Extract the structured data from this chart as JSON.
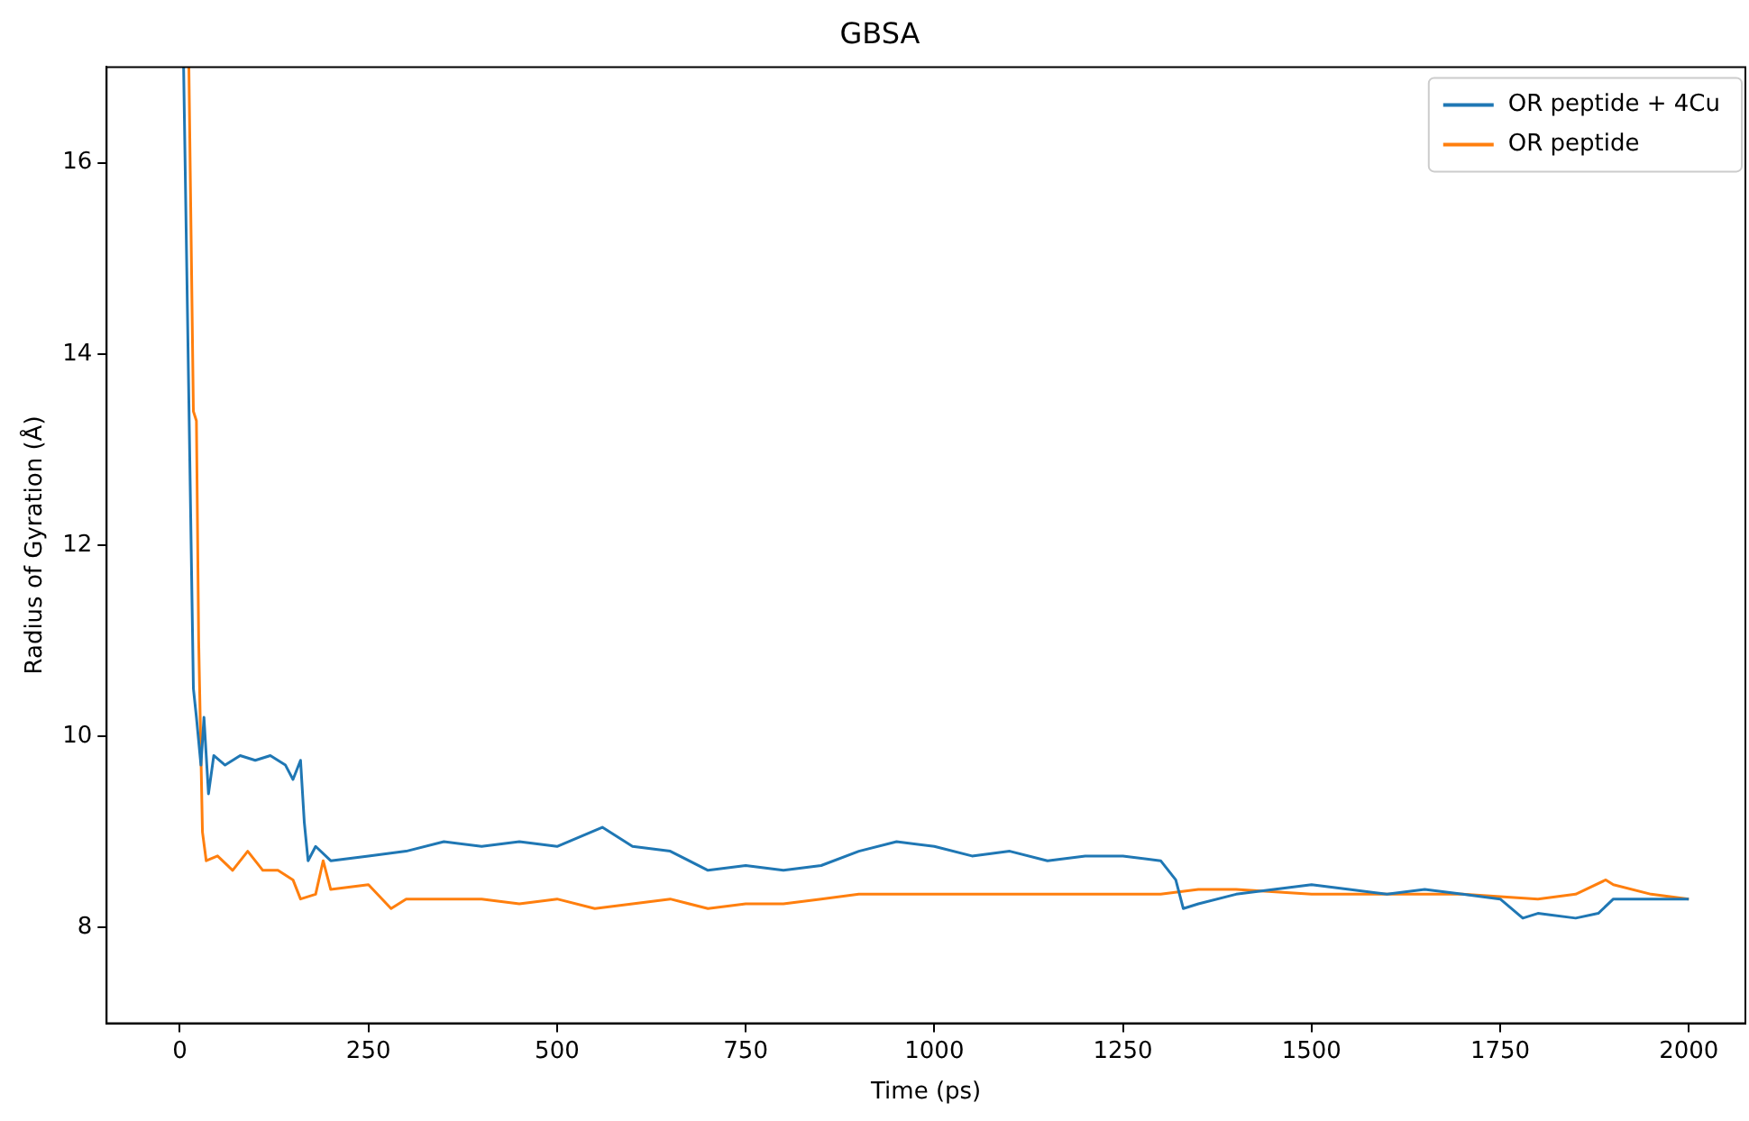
{
  "chart_data": {
    "type": "line",
    "title": "GBSA",
    "xlabel": "Time (ps)",
    "ylabel": "Radius of Gyration (Å)",
    "xlim": [
      -97,
      2075
    ],
    "ylim": [
      7,
      17
    ],
    "xticks": [
      0,
      250,
      500,
      750,
      1000,
      1250,
      1500,
      1750,
      2000
    ],
    "yticks": [
      8,
      10,
      12,
      14,
      16
    ],
    "grid": false,
    "legend": "top right",
    "marker": "none",
    "line_style": "solid",
    "series": [
      {
        "name": "OR peptide + 4Cu",
        "color": "#1f77b4",
        "x": [
          5,
          12,
          18,
          22,
          28,
          32,
          38,
          45,
          60,
          80,
          100,
          120,
          140,
          150,
          160,
          165,
          170,
          180,
          200,
          250,
          300,
          350,
          400,
          450,
          500,
          560,
          600,
          650,
          700,
          750,
          800,
          850,
          900,
          950,
          1000,
          1050,
          1100,
          1150,
          1200,
          1250,
          1300,
          1320,
          1330,
          1350,
          1400,
          1450,
          1500,
          1550,
          1600,
          1650,
          1700,
          1750,
          1780,
          1800,
          1850,
          1880,
          1900,
          1950,
          2000
        ],
        "values": [
          17,
          13.5,
          10.5,
          10.2,
          9.7,
          10.2,
          9.4,
          9.8,
          9.7,
          9.8,
          9.75,
          9.8,
          9.7,
          9.55,
          9.75,
          9.1,
          8.7,
          8.85,
          8.7,
          8.75,
          8.8,
          8.9,
          8.85,
          8.9,
          8.85,
          9.05,
          8.85,
          8.8,
          8.6,
          8.65,
          8.6,
          8.65,
          8.8,
          8.9,
          8.85,
          8.75,
          8.8,
          8.7,
          8.75,
          8.75,
          8.7,
          8.5,
          8.2,
          8.25,
          8.35,
          8.4,
          8.45,
          8.4,
          8.35,
          8.4,
          8.35,
          8.3,
          8.1,
          8.15,
          8.1,
          8.15,
          8.3,
          8.3,
          8.3
        ]
      },
      {
        "name": "OR peptide",
        "color": "#ff7f0e",
        "x": [
          12,
          18,
          22,
          25,
          30,
          35,
          50,
          70,
          90,
          110,
          130,
          150,
          160,
          180,
          190,
          200,
          250,
          280,
          300,
          350,
          400,
          450,
          500,
          550,
          600,
          650,
          700,
          750,
          800,
          850,
          900,
          950,
          1000,
          1100,
          1200,
          1300,
          1350,
          1400,
          1500,
          1600,
          1700,
          1800,
          1850,
          1890,
          1900,
          1950,
          2000
        ],
        "values": [
          17,
          13.4,
          13.3,
          11,
          9.0,
          8.7,
          8.75,
          8.6,
          8.8,
          8.6,
          8.6,
          8.5,
          8.3,
          8.35,
          8.7,
          8.4,
          8.45,
          8.2,
          8.3,
          8.3,
          8.3,
          8.25,
          8.3,
          8.2,
          8.25,
          8.3,
          8.2,
          8.25,
          8.25,
          8.3,
          8.35,
          8.35,
          8.35,
          8.35,
          8.35,
          8.35,
          8.4,
          8.4,
          8.35,
          8.35,
          8.35,
          8.3,
          8.35,
          8.5,
          8.45,
          8.35,
          8.3
        ]
      }
    ]
  }
}
